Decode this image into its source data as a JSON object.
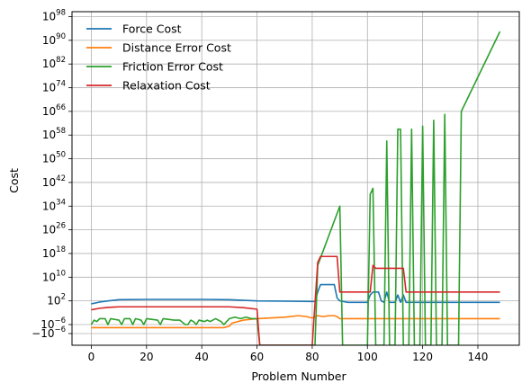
{
  "chart_data": {
    "type": "line",
    "title": "",
    "xlabel": "Problem Number",
    "ylabel": "Cost",
    "xlim": [
      -7,
      155
    ],
    "yscale": "symlog",
    "symlog_linthresh": 1e-06,
    "ylim_exponents": [
      -14,
      100
    ],
    "grid": true,
    "legend_position": "top-left",
    "x_ticks": [
      0,
      20,
      40,
      60,
      80,
      100,
      120,
      140
    ],
    "y_ticks": [
      {
        "base": "10",
        "exp": "98",
        "value": 98
      },
      {
        "base": "10",
        "exp": "90",
        "value": 90
      },
      {
        "base": "10",
        "exp": "82",
        "value": 82
      },
      {
        "base": "10",
        "exp": "74",
        "value": 74
      },
      {
        "base": "10",
        "exp": "66",
        "value": 66
      },
      {
        "base": "10",
        "exp": "58",
        "value": 58
      },
      {
        "base": "10",
        "exp": "50",
        "value": 50
      },
      {
        "base": "10",
        "exp": "42",
        "value": 42
      },
      {
        "base": "10",
        "exp": "34",
        "value": 34
      },
      {
        "base": "10",
        "exp": "26",
        "value": 26
      },
      {
        "base": "10",
        "exp": "18",
        "value": 18
      },
      {
        "base": "10",
        "exp": "10",
        "value": 10
      },
      {
        "base": "10",
        "exp": "2",
        "value": 2
      },
      {
        "base": "10",
        "exp": "−6",
        "value": -6
      },
      {
        "base": "−10",
        "exp": "−6",
        "value": -8.9
      }
    ],
    "series": [
      {
        "name": "Force Cost",
        "color": "#1f77b4",
        "points": [
          [
            0,
            1
          ],
          [
            3,
            1.6
          ],
          [
            6,
            2
          ],
          [
            10,
            2.4
          ],
          [
            20,
            2.5
          ],
          [
            40,
            2.5
          ],
          [
            50,
            2.4
          ],
          [
            60,
            2
          ],
          [
            70,
            1.9
          ],
          [
            80,
            1.8
          ],
          [
            81,
            1.8
          ],
          [
            82,
            5
          ],
          [
            83,
            7.5
          ],
          [
            87,
            7.5
          ],
          [
            88,
            7.5
          ],
          [
            89,
            3
          ],
          [
            90,
            2
          ],
          [
            93,
            1.5
          ],
          [
            100,
            1.5
          ],
          [
            101,
            4
          ],
          [
            102,
            5
          ],
          [
            104,
            5
          ],
          [
            105,
            2
          ],
          [
            106,
            1.5
          ],
          [
            107,
            5
          ],
          [
            108,
            1.5
          ],
          [
            110,
            1.5
          ],
          [
            111,
            4
          ],
          [
            112,
            1.5
          ],
          [
            113,
            4
          ],
          [
            114,
            1.5
          ],
          [
            120,
            1.5
          ],
          [
            130,
            1.5
          ],
          [
            148,
            1.5
          ]
        ]
      },
      {
        "name": "Distance Error Cost",
        "color": "#ff7f0e",
        "points": [
          [
            0,
            -7
          ],
          [
            48,
            -7
          ],
          [
            50,
            -6.5
          ],
          [
            51,
            -5.5
          ],
          [
            55,
            -4.5
          ],
          [
            60,
            -4
          ],
          [
            70,
            -3.5
          ],
          [
            75,
            -3
          ],
          [
            78,
            -3.3
          ],
          [
            80,
            -3.8
          ],
          [
            82,
            -3
          ],
          [
            84,
            -3.3
          ],
          [
            86,
            -3
          ],
          [
            88,
            -3
          ],
          [
            89,
            -3.3
          ],
          [
            90,
            -4
          ],
          [
            100,
            -4
          ],
          [
            110,
            -4
          ],
          [
            130,
            -4
          ],
          [
            148,
            -4
          ]
        ]
      },
      {
        "name": "Friction Error Cost",
        "color": "#2ca02c",
        "points": [
          [
            0,
            -6
          ],
          [
            1,
            -4.5
          ],
          [
            2,
            -5
          ],
          [
            3,
            -4
          ],
          [
            5,
            -4
          ],
          [
            6,
            -6
          ],
          [
            7,
            -4
          ],
          [
            10,
            -4.5
          ],
          [
            11,
            -6
          ],
          [
            12,
            -4
          ],
          [
            14,
            -4
          ],
          [
            15,
            -6
          ],
          [
            16,
            -4
          ],
          [
            18,
            -4.5
          ],
          [
            19,
            -6
          ],
          [
            20,
            -4
          ],
          [
            24,
            -4.5
          ],
          [
            25,
            -6
          ],
          [
            26,
            -4
          ],
          [
            30,
            -4.5
          ],
          [
            32,
            -4.5
          ],
          [
            34,
            -6
          ],
          [
            35,
            -6
          ],
          [
            36,
            -4.5
          ],
          [
            37,
            -5
          ],
          [
            38,
            -6
          ],
          [
            39,
            -4.5
          ],
          [
            41,
            -5
          ],
          [
            42,
            -4.5
          ],
          [
            43,
            -5
          ],
          [
            45,
            -4
          ],
          [
            47,
            -5
          ],
          [
            48,
            -6
          ],
          [
            49,
            -5
          ],
          [
            50,
            -4
          ],
          [
            52,
            -3.5
          ],
          [
            54,
            -4
          ],
          [
            56,
            -3.5
          ],
          [
            58,
            -4
          ],
          [
            60,
            -4
          ],
          [
            61,
            -14
          ],
          [
            80,
            -14
          ],
          [
            81,
            -14
          ],
          [
            82,
            14
          ],
          [
            84,
            19
          ],
          [
            90,
            34
          ],
          [
            91,
            -14
          ],
          [
            100,
            -14
          ],
          [
            101,
            38
          ],
          [
            102,
            40
          ],
          [
            103,
            -14
          ],
          [
            106,
            -14
          ],
          [
            107,
            56
          ],
          [
            108,
            -14
          ],
          [
            110,
            -14
          ],
          [
            111,
            60
          ],
          [
            112,
            60
          ],
          [
            113,
            -14
          ],
          [
            115,
            -14
          ],
          [
            116,
            60
          ],
          [
            117,
            -14
          ],
          [
            119,
            -14
          ],
          [
            120,
            61
          ],
          [
            121,
            -14
          ],
          [
            123,
            -14
          ],
          [
            124,
            63
          ],
          [
            125,
            -14
          ],
          [
            127,
            -14
          ],
          [
            128,
            65
          ],
          [
            129,
            -14
          ],
          [
            133,
            -14
          ],
          [
            134,
            66
          ],
          [
            148,
            93
          ]
        ]
      },
      {
        "name": "Relaxation Cost",
        "color": "#d62728",
        "points": [
          [
            0,
            -1
          ],
          [
            3,
            -0.5
          ],
          [
            6,
            -0.2
          ],
          [
            10,
            0
          ],
          [
            20,
            0
          ],
          [
            40,
            0
          ],
          [
            50,
            0
          ],
          [
            55,
            -0.3
          ],
          [
            60,
            -0.8
          ],
          [
            61,
            -14
          ],
          [
            79,
            -14
          ],
          [
            80,
            -14
          ],
          [
            81,
            1
          ],
          [
            82,
            15
          ],
          [
            83,
            17
          ],
          [
            89,
            17
          ],
          [
            90,
            5
          ],
          [
            100,
            5
          ],
          [
            101,
            5
          ],
          [
            102,
            14
          ],
          [
            103,
            13
          ],
          [
            113,
            13
          ],
          [
            114,
            5
          ],
          [
            130,
            5
          ],
          [
            148,
            5
          ]
        ]
      }
    ]
  }
}
